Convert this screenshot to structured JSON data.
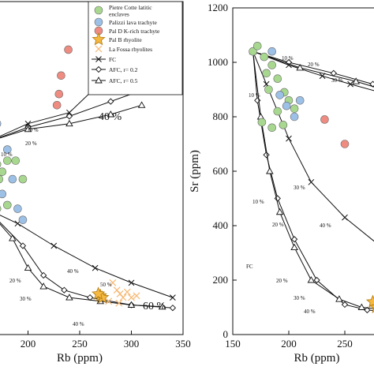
{
  "chart_data": [
    {
      "type": "scatter",
      "panel": "left",
      "xlabel": "Rb (ppm)",
      "ylabel": "",
      "xlim": [
        150,
        350
      ],
      "ylim": [
        300,
        1200
      ],
      "xticks": [
        "200",
        "250",
        "300",
        "350"
      ],
      "grid": false,
      "legend": {
        "placement": "top-right",
        "entries": [
          {
            "label": "Pietre Cotte latitic enclaves",
            "marker": "circle",
            "color": "#a8d88f"
          },
          {
            "label": "Palizzi lava trachyte",
            "marker": "circle",
            "color": "#9cc0e6"
          },
          {
            "label": "Pal D K-rich trachyte",
            "marker": "circle",
            "color": "#ef8b80"
          },
          {
            "label": "Pal B rhyolite",
            "marker": "star",
            "color": "#f5b942"
          },
          {
            "label": "La Fossa rhyolites",
            "marker": "x",
            "color": "#f7b874"
          },
          {
            "label": "FC",
            "marker": "x-line",
            "color": "#111111"
          },
          {
            "label": "AFC, r= 0.2",
            "marker": "diamond-line",
            "color": "#111111"
          },
          {
            "label": "AFC, r= 0.5",
            "marker": "triangle-line",
            "color": "#111111"
          }
        ]
      },
      "series": [
        {
          "name": "Pietre Cotte latitic enclaves",
          "points": [
            [
              152,
              930
            ],
            [
              157,
              870
            ],
            [
              158,
              800
            ],
            [
              165,
              830
            ],
            [
              170,
              760
            ],
            [
              172,
              720
            ],
            [
              175,
              740
            ],
            [
              180,
              770
            ],
            [
              188,
              770
            ],
            [
              195,
              720
            ],
            [
              160,
              680
            ],
            [
              165,
              660
            ],
            [
              170,
              640
            ],
            [
              180,
              650
            ],
            [
              155,
              700
            ],
            [
              158,
              640
            ]
          ]
        },
        {
          "name": "Palizzi lava trachyte",
          "points": [
            [
              170,
              870
            ],
            [
              180,
              800
            ],
            [
              185,
              720
            ],
            [
              190,
              640
            ],
            [
              195,
              610
            ],
            [
              175,
              680
            ]
          ]
        },
        {
          "name": "Pal D K-rich trachyte",
          "points": [
            [
              228,
              920
            ],
            [
              230,
              950
            ],
            [
              232,
              1000
            ],
            [
              239,
              1070
            ]
          ]
        },
        {
          "name": "Pal B rhyolite",
          "points": [
            [
              270,
              405
            ],
            [
              272,
              400
            ],
            [
              268,
              410
            ]
          ]
        },
        {
          "name": "La Fossa rhyolites",
          "points": [
            [
              282,
              440
            ],
            [
              286,
              420
            ],
            [
              289,
              410
            ],
            [
              292,
              400
            ],
            [
              296,
              415
            ],
            [
              300,
              400
            ],
            [
              305,
              405
            ],
            [
              288,
              385
            ],
            [
              278,
              390
            ]
          ]
        },
        {
          "name": "FC",
          "points": [
            [
              160,
              820
            ],
            [
              200,
              870
            ],
            [
              240,
              900
            ],
            [
              270,
              980
            ],
            [
              322,
              1010
            ],
            [
              160,
              640
            ],
            [
              190,
              600
            ],
            [
              225,
              540
            ],
            [
              265,
              480
            ],
            [
              300,
              440
            ],
            [
              340,
              400
            ]
          ]
        },
        {
          "name": "AFC, r= 0.2",
          "points": [
            [
              160,
              820
            ],
            [
              200,
              860
            ],
            [
              240,
              890
            ],
            [
              280,
              930
            ],
            [
              310,
              960
            ],
            [
              160,
              640
            ],
            [
              195,
              540
            ],
            [
              215,
              460
            ],
            [
              235,
              420
            ],
            [
              260,
              400
            ],
            [
              300,
              380
            ],
            [
              340,
              372
            ]
          ]
        },
        {
          "name": "AFC, r= 0.5",
          "points": [
            [
              160,
              820
            ],
            [
              200,
              855
            ],
            [
              240,
              870
            ],
            [
              280,
              895
            ],
            [
              310,
              920
            ],
            [
              160,
              640
            ],
            [
              185,
              560
            ],
            [
              200,
              480
            ],
            [
              215,
              430
            ],
            [
              240,
              400
            ],
            [
              270,
              390
            ],
            [
              300,
              380
            ],
            [
              330,
              375
            ]
          ]
        }
      ],
      "annotations": [
        "40 %",
        "60 %",
        "10 %",
        "20 %",
        "30 %",
        "40 %",
        "50 %",
        "20 %",
        "30 %",
        "40 %"
      ]
    },
    {
      "type": "scatter",
      "panel": "right",
      "xlabel": "Rb (ppm)",
      "ylabel": "Sr (ppm)",
      "xlim": [
        150,
        300
      ],
      "ylim": [
        0,
        1200
      ],
      "xticks": [
        "150",
        "200",
        "250"
      ],
      "yticks": [
        "0",
        "200",
        "400",
        "600",
        "800",
        "1000",
        "1200"
      ],
      "grid": false,
      "series": [
        {
          "name": "Pietre Cotte latitic enclaves",
          "points": [
            [
              168,
              1040
            ],
            [
              172,
              1060
            ],
            [
              178,
              1020
            ],
            [
              185,
              990
            ],
            [
              180,
              960
            ],
            [
              190,
              940
            ],
            [
              182,
              900
            ],
            [
              196,
              890
            ],
            [
              200,
              860
            ],
            [
              176,
              780
            ],
            [
              185,
              760
            ],
            [
              195,
              770
            ],
            [
              190,
              820
            ],
            [
              205,
              830
            ]
          ]
        },
        {
          "name": "Palizzi lava trachyte",
          "points": [
            [
              185,
              1040
            ],
            [
              192,
              880
            ],
            [
              198,
              840
            ],
            [
              205,
              800
            ],
            [
              210,
              860
            ]
          ]
        },
        {
          "name": "Pal D K-rich trachyte",
          "points": [
            [
              232,
              790
            ],
            [
              250,
              700
            ]
          ]
        },
        {
          "name": "Pal B rhyolite",
          "points": [
            [
              275,
              120
            ],
            [
              278,
              100
            ],
            [
              280,
              90
            ]
          ]
        },
        {
          "name": "La Fossa rhyolites",
          "points": [
            [
              290,
              210
            ],
            [
              292,
              180
            ],
            [
              296,
              150
            ],
            [
              285,
              80
            ],
            [
              290,
              70
            ],
            [
              298,
              60
            ]
          ]
        },
        {
          "name": "FC",
          "points": [
            [
              168,
              1040
            ],
            [
              200,
              990
            ],
            [
              230,
              950
            ],
            [
              255,
              920
            ],
            [
              290,
              880
            ],
            [
              168,
              1040
            ],
            [
              180,
              920
            ],
            [
              200,
              720
            ],
            [
              220,
              560
            ],
            [
              250,
              430
            ],
            [
              280,
              330
            ],
            [
              300,
              270
            ]
          ]
        },
        {
          "name": "AFC, r= 0.2",
          "points": [
            [
              168,
              1040
            ],
            [
              200,
              1000
            ],
            [
              240,
              960
            ],
            [
              275,
              920
            ],
            [
              300,
              890
            ],
            [
              168,
              1040
            ],
            [
              172,
              860
            ],
            [
              180,
              660
            ],
            [
              190,
              500
            ],
            [
              205,
              350
            ],
            [
              225,
              200
            ],
            [
              250,
              110
            ],
            [
              270,
              90
            ],
            [
              300,
              80
            ]
          ]
        },
        {
          "name": "AFC, r= 0.5",
          "points": [
            [
              168,
              1040
            ],
            [
              210,
              980
            ],
            [
              260,
              930
            ],
            [
              300,
              880
            ],
            [
              168,
              1040
            ],
            [
              175,
              800
            ],
            [
              183,
              600
            ],
            [
              192,
              450
            ],
            [
              205,
              320
            ],
            [
              220,
              200
            ],
            [
              245,
              130
            ],
            [
              265,
              100
            ],
            [
              290,
              90
            ]
          ]
        }
      ],
      "annotations": [
        "10 %",
        "20 %",
        "30 %",
        "10 %",
        "20 %",
        "30 %",
        "40 %",
        "FC",
        "10 %",
        "20 %",
        "30 %",
        "40 %"
      ]
    }
  ]
}
